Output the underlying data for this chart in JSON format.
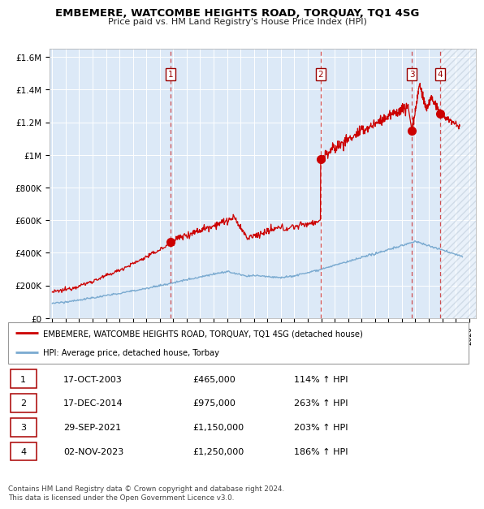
{
  "title": "EMBEMERE, WATCOMBE HEIGHTS ROAD, TORQUAY, TQ1 4SG",
  "subtitle": "Price paid vs. HM Land Registry's House Price Index (HPI)",
  "background_color": "#dce9f7",
  "ylim": [
    0,
    1650000
  ],
  "yticks": [
    0,
    200000,
    400000,
    600000,
    800000,
    1000000,
    1200000,
    1400000,
    1600000
  ],
  "ytick_labels": [
    "£0",
    "£200K",
    "£400K",
    "£600K",
    "£800K",
    "£1M",
    "£1.2M",
    "£1.4M",
    "£1.6M"
  ],
  "xlim_start": 1994.8,
  "xlim_end": 2026.5,
  "red_line_color": "#cc0000",
  "blue_line_color": "#7aaad0",
  "grid_color": "#ffffff",
  "dashed_line_color": "#cc3333",
  "sale_dates": [
    2003.79,
    2014.96,
    2021.74,
    2023.84
  ],
  "sale_prices": [
    465000,
    975000,
    1150000,
    1250000
  ],
  "sale_labels": [
    "1",
    "2",
    "3",
    "4"
  ],
  "legend_label_red": "EMBEMERE, WATCOMBE HEIGHTS ROAD, TORQUAY, TQ1 4SG (detached house)",
  "legend_label_blue": "HPI: Average price, detached house, Torbay",
  "table_data": [
    [
      "1",
      "17-OCT-2003",
      "£465,000",
      "114% ↑ HPI"
    ],
    [
      "2",
      "17-DEC-2014",
      "£975,000",
      "263% ↑ HPI"
    ],
    [
      "3",
      "29-SEP-2021",
      "£1,150,000",
      "203% ↑ HPI"
    ],
    [
      "4",
      "02-NOV-2023",
      "£1,250,000",
      "186% ↑ HPI"
    ]
  ],
  "footer": "Contains HM Land Registry data © Crown copyright and database right 2024.\nThis data is licensed under the Open Government Licence v3.0.",
  "hatch_start": 2023.84
}
